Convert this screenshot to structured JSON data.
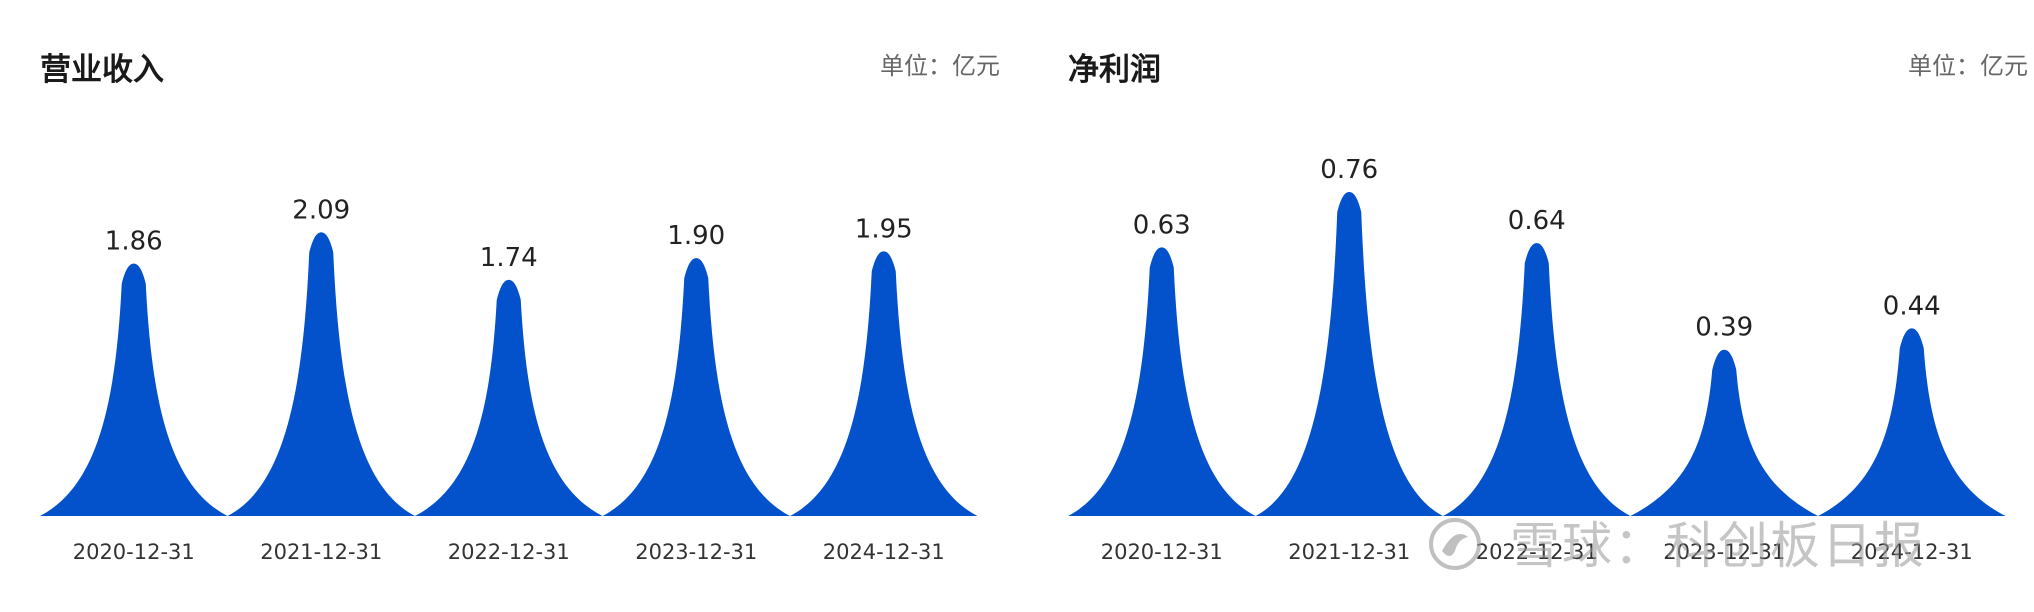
{
  "colors": {
    "peak": "#0352CC"
  },
  "watermark": {
    "text": "雪球：科创板日报",
    "icon": "snowball-logo-icon"
  },
  "chart_data": [
    {
      "type": "area",
      "title": "营业收入",
      "unit_label": "单位：亿元",
      "categories": [
        "2020-12-31",
        "2021-12-31",
        "2022-12-31",
        "2023-12-31",
        "2024-12-31"
      ],
      "values": [
        1.86,
        2.09,
        1.74,
        1.9,
        1.95
      ],
      "value_labels": [
        "1.86",
        "2.09",
        "1.74",
        "1.90",
        "1.95"
      ],
      "ylim": [
        0,
        2.1
      ],
      "grid": false,
      "legend": "none"
    },
    {
      "type": "area",
      "title": "净利润",
      "unit_label": "单位：亿元",
      "categories": [
        "2020-12-31",
        "2021-12-31",
        "2022-12-31",
        "2023-12-31",
        "2024-12-31"
      ],
      "values": [
        0.63,
        0.76,
        0.64,
        0.39,
        0.44
      ],
      "value_labels": [
        "0.63",
        "0.76",
        "0.64",
        "0.39",
        "0.44"
      ],
      "ylim": [
        0,
        0.76
      ],
      "grid": false,
      "legend": "none"
    }
  ]
}
